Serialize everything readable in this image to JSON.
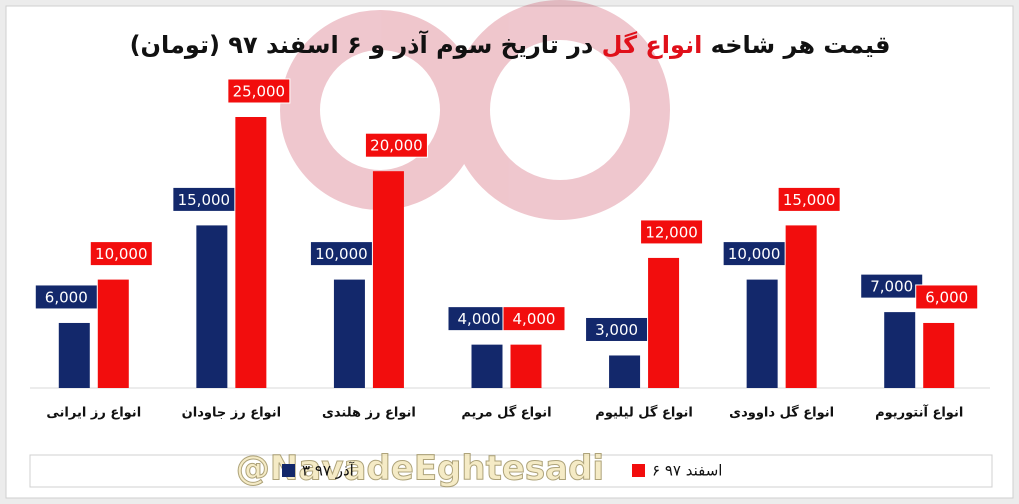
{
  "chart_data": {
    "type": "bar",
    "title": {
      "before": "قیمت هر شاخه ",
      "highlight": "انواع گل",
      "after": " در تاریخ سوم آذر و ۶ اسفند ۹۷ (تومان)"
    },
    "categories": [
      "انواع رز ایرانی",
      "انواع رز جاودان",
      "انواع رز هلندی",
      "انواع گل مریم",
      "انواع گل لیلیوم",
      "انواع گل داوودی",
      "انواع آنتوریوم"
    ],
    "series": [
      {
        "name": "۳ آذر ۹۷",
        "color": "#13286b",
        "values": [
          6000,
          15000,
          10000,
          4000,
          3000,
          10000,
          7000
        ],
        "value_labels": [
          "6,000",
          "15,000",
          "10,000",
          "4,000",
          "3,000",
          "10,000",
          "7,000"
        ]
      },
      {
        "name": "۶ اسفند ۹۷",
        "color": "#f20d0d",
        "values": [
          10000,
          25000,
          20000,
          4000,
          12000,
          15000,
          6000
        ],
        "value_labels": [
          "10,000",
          "25,000",
          "20,000",
          "4,000",
          "12,000",
          "15,000",
          "6,000"
        ]
      }
    ],
    "watermark": "@NavadeEghtesadi"
  }
}
